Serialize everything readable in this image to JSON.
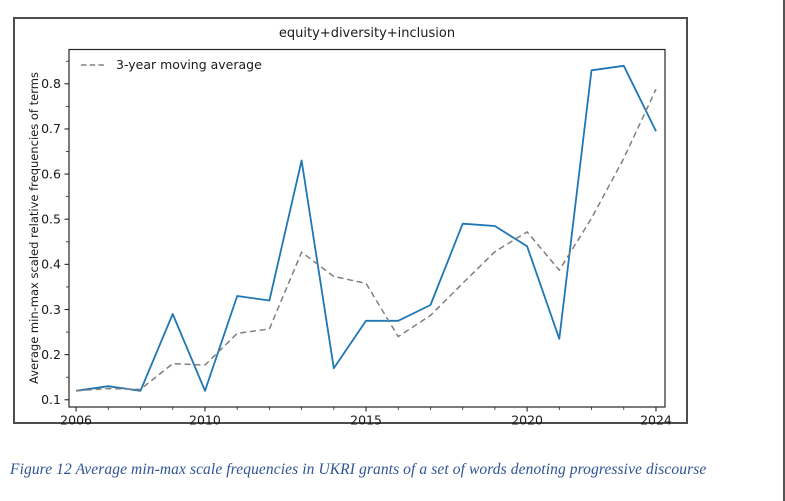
{
  "figure": {
    "caption": "Figure 12 Average min-max scale frequencies in UKRI grants of a set of words denoting progressive discourse",
    "caption_color": "#2F5496"
  },
  "chart_data": {
    "type": "line",
    "title": "equity+diversity+inclusion",
    "xlabel": "",
    "ylabel": "Average min-max scaled relative frequencies of terms",
    "x": [
      2006,
      2007,
      2008,
      2009,
      2010,
      2011,
      2012,
      2013,
      2014,
      2015,
      2016,
      2017,
      2018,
      2019,
      2020,
      2021,
      2022,
      2023,
      2024
    ],
    "series": [
      {
        "name": "equity+diversity+inclusion",
        "color": "#1f77b4",
        "line_style": "solid",
        "values": [
          0.12,
          0.13,
          0.12,
          0.29,
          0.12,
          0.33,
          0.32,
          0.63,
          0.17,
          0.275,
          0.275,
          0.31,
          0.49,
          0.485,
          0.44,
          0.235,
          0.83,
          0.84,
          0.695
        ]
      },
      {
        "name": "3-year moving average",
        "color": "#7f7f7f",
        "line_style": "dashed",
        "values": [
          0.12,
          0.125,
          0.123,
          0.18,
          0.177,
          0.247,
          0.257,
          0.427,
          0.373,
          0.358,
          0.24,
          0.287,
          0.358,
          0.428,
          0.472,
          0.387,
          0.502,
          0.635,
          0.788
        ]
      }
    ],
    "legend": {
      "entries": [
        "3-year moving average"
      ],
      "position": "upper-left",
      "frame": false
    },
    "x_tick_labels": [
      "2006",
      "2010",
      "2015",
      "2020",
      "2024"
    ],
    "y_tick_labels": [
      "0.1",
      "0.2",
      "0.3",
      "0.4",
      "0.5",
      "0.6",
      "0.7",
      "0.8"
    ],
    "x_minor_tick_interval": 1,
    "y_minor_tick_interval": 0.05,
    "xlim": [
      2005.78,
      2024.28
    ],
    "ylim": [
      0.084,
      0.876
    ],
    "grid": false
  }
}
